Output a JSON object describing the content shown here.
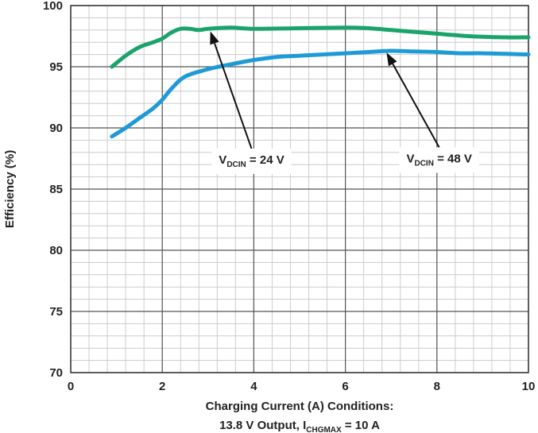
{
  "chart_data": {
    "type": "line",
    "title": "",
    "xlabel": "Charging Current (A) Conditions:",
    "xlabel_line2": {
      "prefix": "13.8 V Output, I",
      "sub": "CHGMAX",
      "suffix": " = 10 A"
    },
    "ylabel": "Efficiency (%)",
    "xlim": [
      0,
      10
    ],
    "ylim": [
      70,
      100
    ],
    "x_ticks": [
      "0",
      "2",
      "4",
      "6",
      "8",
      "10"
    ],
    "y_ticks": [
      "70",
      "75",
      "80",
      "85",
      "90",
      "95",
      "100"
    ],
    "grid": true,
    "series": [
      {
        "name": "VDCIN = 24 V",
        "color": "#1aa36b",
        "x": [
          0.9,
          1.2,
          1.5,
          1.8,
          2.0,
          2.2,
          2.4,
          2.6,
          2.8,
          3.0,
          3.5,
          4.0,
          5.0,
          6.0,
          6.5,
          7.0,
          7.5,
          8.0,
          8.5,
          9.0,
          9.5,
          10.0
        ],
        "y": [
          95.0,
          95.9,
          96.6,
          97.0,
          97.3,
          97.8,
          98.1,
          98.1,
          98.0,
          98.1,
          98.2,
          98.1,
          98.15,
          98.2,
          98.15,
          98.0,
          97.85,
          97.7,
          97.55,
          97.45,
          97.4,
          97.4
        ]
      },
      {
        "name": "VDCIN = 48 V",
        "color": "#1e9ad6",
        "x": [
          0.9,
          1.2,
          1.5,
          1.8,
          2.0,
          2.2,
          2.5,
          3.0,
          3.5,
          4.0,
          4.5,
          5.0,
          5.5,
          6.0,
          6.5,
          7.0,
          7.5,
          8.0,
          8.5,
          9.0,
          9.5,
          10.0
        ],
        "y": [
          89.3,
          90.0,
          90.8,
          91.6,
          92.3,
          93.2,
          94.2,
          94.8,
          95.2,
          95.55,
          95.8,
          95.9,
          96.0,
          96.1,
          96.2,
          96.3,
          96.25,
          96.2,
          96.1,
          96.1,
          96.05,
          96.0
        ]
      }
    ],
    "annotations": [
      {
        "prefix": "V",
        "sub": "DCIN",
        "suffix": " = 24 V",
        "label_at": [
          3.95,
          87.4
        ],
        "arrow_to": [
          3.05,
          97.9
        ]
      },
      {
        "prefix": "V",
        "sub": "DCIN",
        "suffix": " = 48 V",
        "label_at": [
          8.05,
          87.5
        ],
        "arrow_to": [
          6.9,
          96.15
        ]
      }
    ]
  }
}
